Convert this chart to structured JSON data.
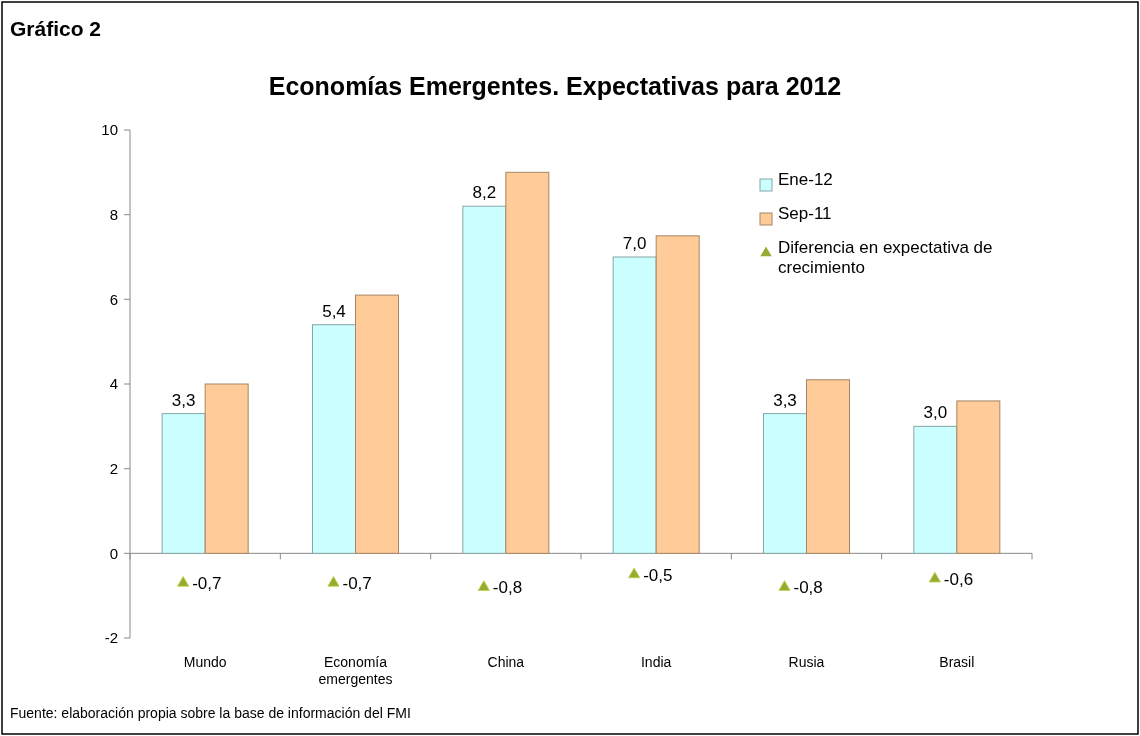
{
  "chart_data": {
    "type": "bar",
    "title": "Gráfico 2",
    "subtitle": "Economías Emergentes. Expectativas para 2012",
    "categories": [
      "Mundo",
      "Economía emergentes",
      "China",
      "India",
      "Rusia",
      "Brasil"
    ],
    "series": [
      {
        "name": "Ene-12",
        "color": "#ccffff",
        "values": [
          3.3,
          5.4,
          8.2,
          7.0,
          3.3,
          3.0
        ],
        "value_labels": [
          "3,3",
          "5,4",
          "8,2",
          "7,0",
          "3,3",
          "3,0"
        ]
      },
      {
        "name": "Sep-11",
        "color": "#ffcc99",
        "values": [
          4.0,
          6.1,
          9.0,
          7.5,
          4.1,
          3.6
        ]
      },
      {
        "name": "Diferencia en expectativa de crecimiento",
        "type": "scatter",
        "color": "#99aa33",
        "values": [
          -0.7,
          -0.7,
          -0.8,
          -0.5,
          -0.8,
          -0.6
        ],
        "value_labels": [
          "-0,7",
          "-0,7",
          "-0,8",
          "-0,5",
          "-0,8",
          "-0,6"
        ]
      }
    ],
    "ylim": [
      -2,
      10
    ],
    "yticks": [
      -2,
      0,
      2,
      4,
      6,
      8,
      10
    ],
    "marker": "triangle",
    "legend": "top right",
    "annotations": [
      "Fuente: elaboración propia sobre la base de información del FMI"
    ]
  }
}
